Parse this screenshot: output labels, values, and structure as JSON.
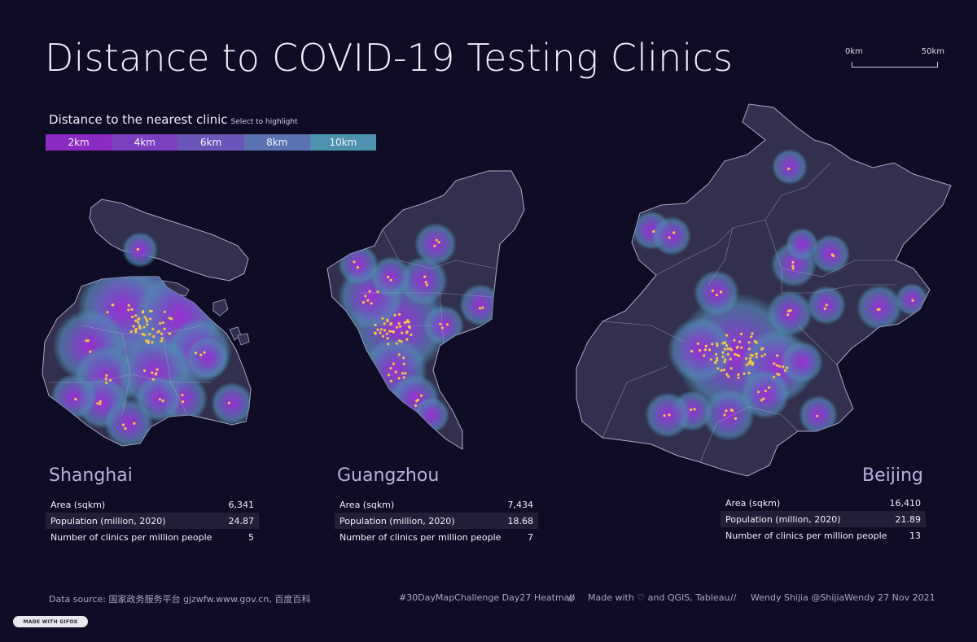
{
  "title": "Distance to COVID-19 Testing Clinics",
  "scale": {
    "start": "0km",
    "end": "50km"
  },
  "legend": {
    "title": "Distance to the nearest clinic",
    "hint": "Select to highlight",
    "items": [
      {
        "label": "2km",
        "color": "#8b2bc4"
      },
      {
        "label": "4km",
        "color": "#7c3fc0"
      },
      {
        "label": "6km",
        "color": "#6b55b9"
      },
      {
        "label": "8km",
        "color": "#5b73b3"
      },
      {
        "label": "10km",
        "color": "#4d93af"
      }
    ]
  },
  "colors": {
    "background": "#0f0d26",
    "land": "#33304f",
    "border": "#aaa6c4",
    "clinic": "#f5c34a"
  },
  "cities": [
    {
      "name": "Shanghai",
      "stats": [
        {
          "label": "Area (sqkm)",
          "value": "6,341"
        },
        {
          "label": "Population (million, 2020)",
          "value": "24.87"
        },
        {
          "label": "Number of clinics per million people",
          "value": "5"
        }
      ]
    },
    {
      "name": "Guangzhou",
      "stats": [
        {
          "label": "Area (sqkm)",
          "value": "7,434"
        },
        {
          "label": "Population (million, 2020)",
          "value": "18.68"
        },
        {
          "label": "Number of clinics per million people",
          "value": "7"
        }
      ]
    },
    {
      "name": "Beijing",
      "stats": [
        {
          "label": "Area (sqkm)",
          "value": "16,410"
        },
        {
          "label": "Population (million, 2020)",
          "value": "21.89"
        },
        {
          "label": "Number of clinics per million people",
          "value": "13"
        }
      ]
    }
  ],
  "footer": {
    "source": "Data source: 国家政务服务平台 gjzwfw.www.gov.cn, 百度百科",
    "challenge": "#30DayMapChallenge Day27 Heatmap",
    "sep1": "//",
    "made": "Made with ♡ and QGIS, Tableau",
    "sep2": "//",
    "author": "Wendy Shijia  @ShijiaWendy  27 Nov 2021"
  },
  "badge": "MADE WITH GIFOX"
}
